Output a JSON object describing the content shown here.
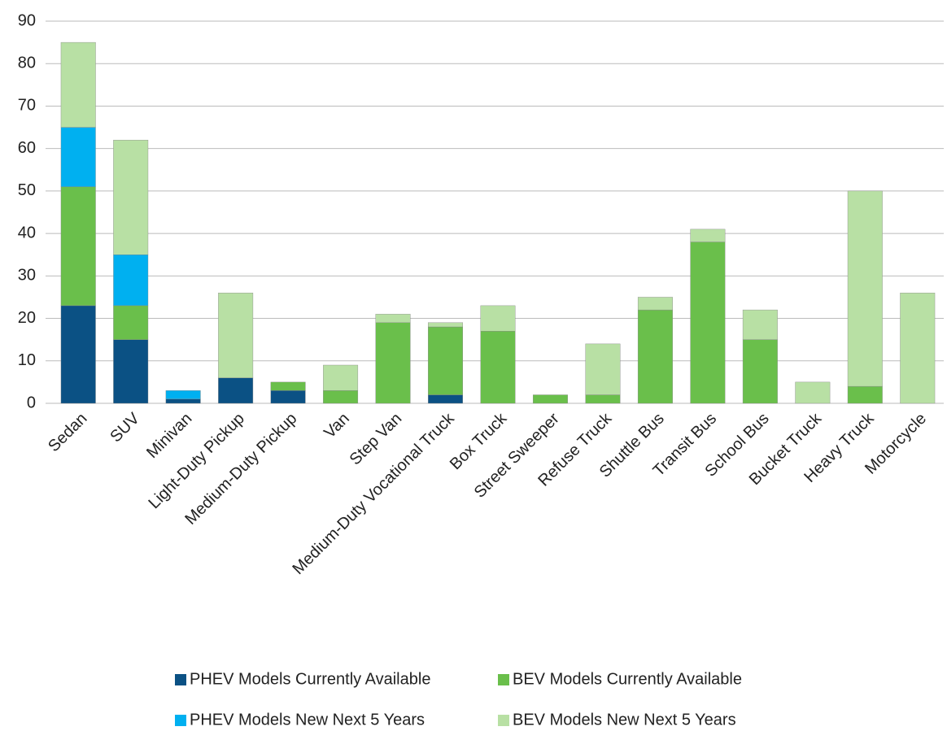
{
  "chart_data": {
    "type": "stacked_bar",
    "categories": [
      "Sedan",
      "SUV",
      "Minivan",
      "Light-Duty Pickup",
      "Medium-Duty Pickup",
      "Van",
      "Step Van",
      "Medium-Duty Vocational Truck",
      "Box Truck",
      "Street Sweeper",
      "Refuse Truck",
      "Shuttle Bus",
      "Transit Bus",
      "School Bus",
      "Bucket Truck",
      "Heavy Truck",
      "Motorcycle"
    ],
    "series": [
      {
        "name": "PHEV Models Currently Available",
        "color": "#0b5184",
        "values": [
          23,
          15,
          1,
          6,
          3,
          0,
          0,
          2,
          0,
          0,
          0,
          0,
          0,
          0,
          0,
          0,
          0
        ]
      },
      {
        "name": "BEV Models Currently Available",
        "color": "#6abf4b",
        "values": [
          28,
          8,
          0,
          0,
          2,
          3,
          19,
          16,
          17,
          2,
          2,
          22,
          38,
          15,
          0,
          4,
          0
        ]
      },
      {
        "name": "PHEV Models New Next 5 Years",
        "color": "#00b0f0",
        "values": [
          14,
          12,
          2,
          0,
          0,
          0,
          0,
          0,
          0,
          0,
          0,
          0,
          0,
          0,
          0,
          0,
          0
        ]
      },
      {
        "name": "BEV Models New Next 5 Years",
        "color": "#b8e0a4",
        "values": [
          20,
          27,
          0,
          20,
          0,
          6,
          2,
          1,
          6,
          0,
          12,
          3,
          3,
          7,
          5,
          46,
          26
        ]
      }
    ],
    "ylim": [
      0,
      90
    ],
    "yticks": [
      0,
      10,
      20,
      30,
      40,
      50,
      60,
      70,
      80,
      90
    ],
    "grid": true
  }
}
